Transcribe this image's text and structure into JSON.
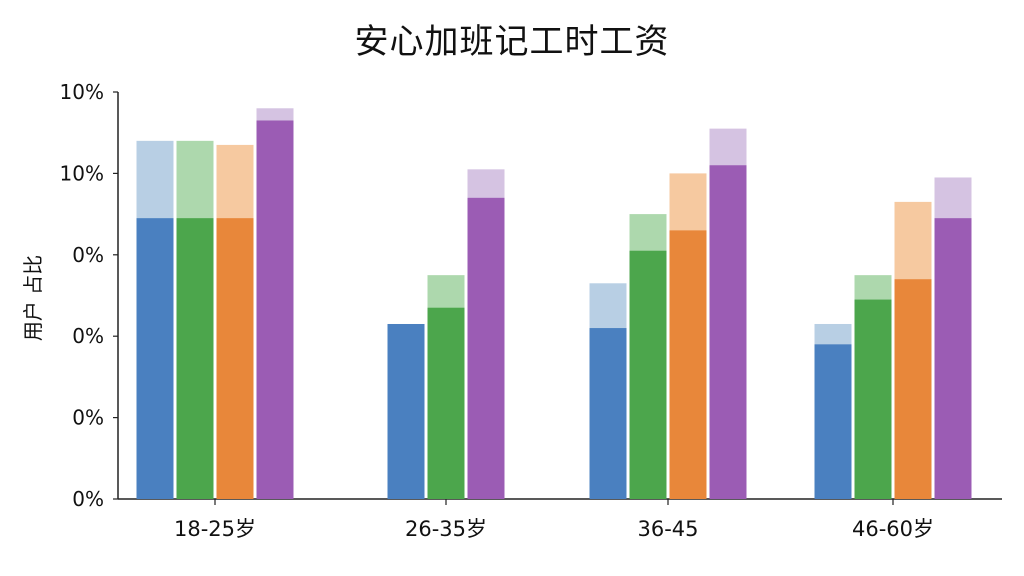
{
  "chart_data": {
    "type": "bar",
    "title": "安心加班记工时工资",
    "ylabel": "用户 占比",
    "y_tick_labels": [
      "0%",
      "0%",
      "0%",
      "0%",
      "10%",
      "10%"
    ],
    "ylim": [
      0,
      10
    ],
    "categories": [
      "18-25岁",
      "26-35岁",
      "36-45",
      "46-60岁"
    ],
    "series": [
      {
        "color": "#4a80c0",
        "light_color": "#b8cfe4",
        "values": [
          6.9,
          4.3,
          4.2,
          3.8
        ],
        "upper_values": [
          8.8,
          null,
          5.3,
          4.3
        ]
      },
      {
        "color": "#4ca64c",
        "light_color": "#add8ad",
        "values": [
          6.9,
          4.7,
          6.1,
          4.9
        ],
        "upper_values": [
          8.8,
          5.5,
          7.0,
          5.5
        ]
      },
      {
        "color": "#e8873a",
        "light_color": "#f6c9a0",
        "values": [
          6.9,
          null,
          6.6,
          5.4
        ],
        "upper_values": [
          8.7,
          null,
          8.0,
          7.3
        ]
      },
      {
        "color": "#9b5cb4",
        "light_color": "#d5c3e2",
        "values": [
          9.3,
          7.4,
          8.2,
          6.9
        ],
        "upper_values": [
          9.6,
          8.1,
          9.1,
          7.9
        ]
      }
    ],
    "grid": false,
    "legend": "none"
  }
}
